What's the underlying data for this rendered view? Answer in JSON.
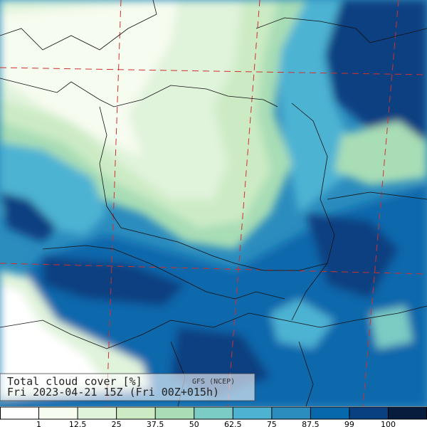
{
  "title": "Total cloud cover  [%]",
  "model": "GFS (NCEP)",
  "valid": "Fri 2023-04-21 15Z (Fri 00Z+015h)",
  "legend": {
    "ticks": [
      1,
      12.5,
      25,
      37.5,
      50,
      62.5,
      75,
      87.5,
      99,
      100
    ],
    "colors": [
      "#ffffff",
      "#f7fcf0",
      "#e0f3db",
      "#ccebc5",
      "#a8ddb5",
      "#7bccc4",
      "#4eb3d3",
      "#2b8cbe",
      "#0868ac",
      "#084081",
      "#081d3d"
    ]
  }
}
